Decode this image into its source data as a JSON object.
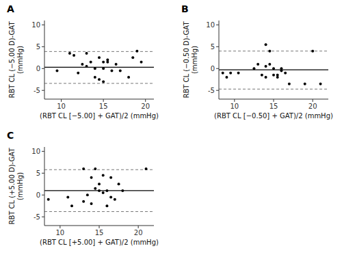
{
  "chart_data": [
    {
      "type": "scatter",
      "title": "A",
      "x": [
        9.5,
        11.0,
        11.5,
        12.0,
        12.5,
        13.0,
        13.0,
        13.5,
        14.0,
        14.0,
        14.5,
        14.5,
        15.0,
        15.0,
        15.0,
        15.5,
        15.5,
        16.0,
        16.5,
        17.0,
        18.0,
        18.5,
        19.0,
        19.5
      ],
      "values": [
        -0.5,
        3.5,
        3.0,
        -1.0,
        1.0,
        3.5,
        0.5,
        1.5,
        0.0,
        -2.0,
        2.5,
        -2.5,
        1.5,
        0.0,
        -3.0,
        2.0,
        1.5,
        -0.5,
        1.0,
        -0.5,
        -2.0,
        2.5,
        4.0,
        1.5
      ],
      "color": "#000000",
      "marker": "circle",
      "mean_line": {
        "value": 0.3,
        "color": "#000000",
        "line_style": "solid"
      },
      "upper_loa": {
        "value": 3.9,
        "color": "#777777",
        "line_style": "dashed"
      },
      "lower_loa": {
        "value": -3.4,
        "color": "#777777",
        "line_style": "dashed"
      },
      "x_label": "(RBT CL [−5.00] + GAT)/2 (mmHg)",
      "y_label": "RBT CL (−5.00 D)-GAT\n(mmHg)",
      "xlim": [
        8,
        21
      ],
      "ylim": [
        -7,
        11
      ],
      "xticks": [
        10,
        15,
        20
      ],
      "yticks": [
        -5,
        0,
        5,
        10
      ],
      "grid": false
    },
    {
      "type": "scatter",
      "title": "B",
      "x": [
        8.5,
        9.0,
        9.5,
        10.5,
        12.5,
        13.0,
        13.5,
        14.0,
        14.0,
        14.0,
        14.5,
        14.5,
        15.0,
        15.0,
        15.5,
        15.5,
        16.0,
        16.0,
        16.5,
        17.0,
        19.0,
        20.0,
        21.0
      ],
      "values": [
        -1.0,
        -2.0,
        -1.0,
        -1.0,
        0.0,
        1.0,
        -1.5,
        0.5,
        5.5,
        -2.0,
        4.0,
        1.0,
        0.0,
        -1.5,
        -1.5,
        -2.0,
        0.0,
        -0.5,
        -1.0,
        -3.5,
        -3.5,
        4.0,
        -3.5
      ],
      "color": "#000000",
      "marker": "circle",
      "mean_line": {
        "value": -0.3,
        "color": "#000000",
        "line_style": "solid"
      },
      "upper_loa": {
        "value": 4.0,
        "color": "#777777",
        "line_style": "dashed"
      },
      "lower_loa": {
        "value": -4.7,
        "color": "#777777",
        "line_style": "dashed"
      },
      "x_label": "(RBT CL [−0.50] + GAT)/2 (mmHg)",
      "y_label": "RBT CL (−0.50 D)-GAT\n(mmHg)",
      "xlim": [
        8,
        22
      ],
      "ylim": [
        -7,
        11
      ],
      "xticks": [
        10,
        15,
        20
      ],
      "yticks": [
        -5,
        0,
        5,
        10
      ],
      "grid": false
    },
    {
      "type": "scatter",
      "title": "C",
      "x": [
        8.5,
        11.0,
        11.5,
        13.0,
        13.0,
        13.5,
        14.0,
        14.0,
        14.5,
        14.5,
        15.0,
        15.0,
        15.5,
        15.5,
        16.0,
        16.0,
        16.5,
        16.5,
        17.0,
        17.5,
        18.0,
        21.0
      ],
      "values": [
        -1.0,
        -0.5,
        -2.5,
        6.0,
        -1.5,
        0.0,
        4.0,
        -2.0,
        1.5,
        6.0,
        1.0,
        2.5,
        4.5,
        0.5,
        -2.5,
        1.0,
        -0.5,
        4.0,
        -1.0,
        2.5,
        1.0,
        6.0
      ],
      "color": "#000000",
      "marker": "circle",
      "mean_line": {
        "value": 1.0,
        "color": "#000000",
        "line_style": "solid"
      },
      "upper_loa": {
        "value": 5.8,
        "color": "#777777",
        "line_style": "dashed"
      },
      "lower_loa": {
        "value": -3.8,
        "color": "#777777",
        "line_style": "dashed"
      },
      "x_label": "(RBT CL [+5.00] + GAT)/2 (mmHg)",
      "y_label": "RBT CL (+5.00 D)-GAT\n(mmHg)",
      "xlim": [
        8,
        22
      ],
      "ylim": [
        -7,
        11
      ],
      "xticks": [
        10,
        15,
        20
      ],
      "yticks": [
        -5,
        0,
        5,
        10
      ],
      "grid": false
    }
  ]
}
